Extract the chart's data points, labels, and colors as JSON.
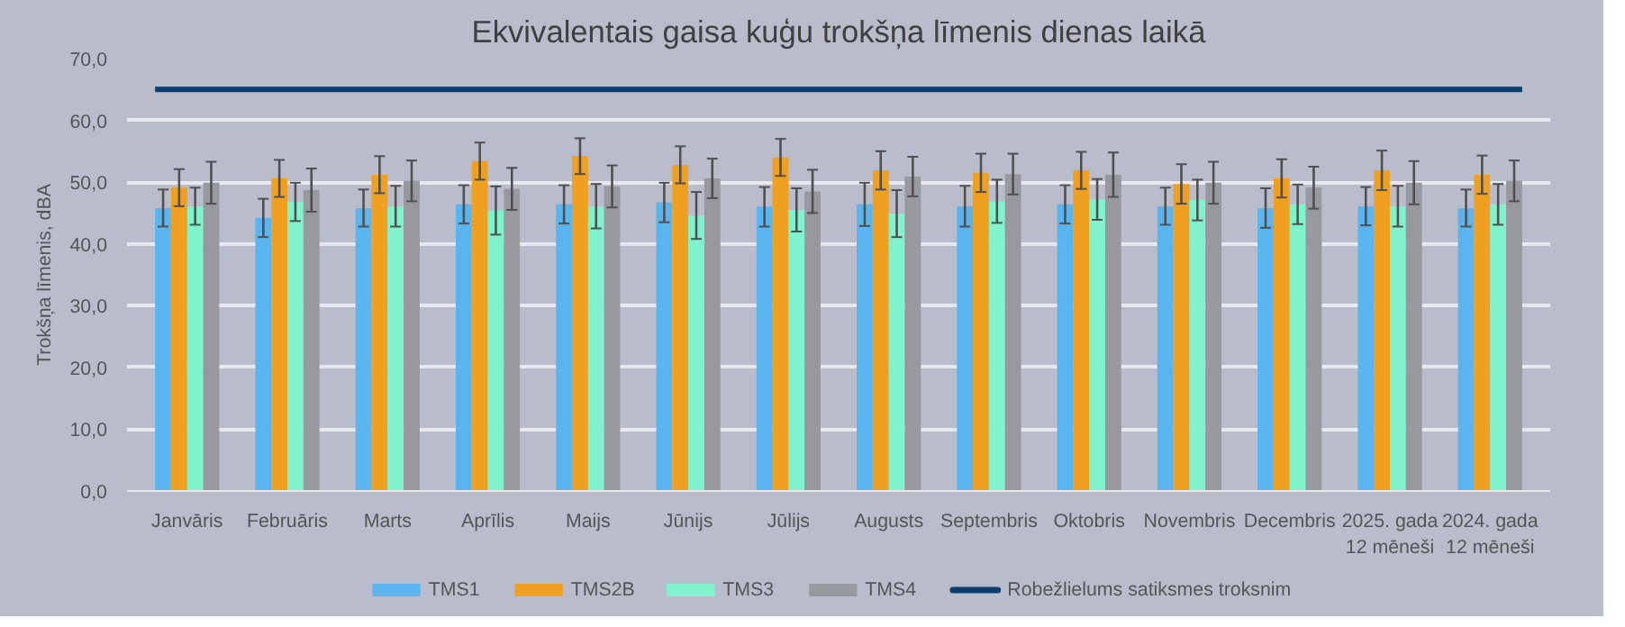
{
  "chart_data": {
    "type": "bar",
    "title": "Ekvivalentais gaisa kuģu trokšņa līmenis dienas laikā",
    "ylabel": "Trokšņa līmenis, dBA",
    "categories": [
      "Janvāris",
      "Februāris",
      "Marts",
      "Aprīlis",
      "Maijs",
      "Jūnijs",
      "Jūlijs",
      "Augusts",
      "Septembris",
      "Oktobris",
      "Novembris",
      "Decembris",
      "2025. gada\n12 mēneši",
      "2024. gada\n12 mēneši"
    ],
    "series": [
      {
        "name": "TMS1",
        "color": "#5ab4f0",
        "values": [
          45.8,
          44.2,
          45.8,
          46.4,
          46.4,
          46.7,
          46.0,
          46.4,
          46.1,
          46.4,
          46.1,
          45.8,
          46.1,
          45.8
        ],
        "errors": [
          3.0,
          3.1,
          3.0,
          3.1,
          3.1,
          3.2,
          3.2,
          3.5,
          3.3,
          3.1,
          3.0,
          3.2,
          3.1,
          3.0
        ]
      },
      {
        "name": "TMS2B",
        "color": "#f0a020",
        "values": [
          49.1,
          50.6,
          51.2,
          53.4,
          54.2,
          52.8,
          54.0,
          51.9,
          51.5,
          51.9,
          49.7,
          50.6,
          51.9,
          51.2
        ],
        "errors": [
          3.0,
          3.0,
          3.0,
          3.0,
          2.9,
          3.0,
          3.0,
          3.1,
          3.1,
          3.0,
          3.2,
          3.1,
          3.2,
          3.1
        ]
      },
      {
        "name": "TMS3",
        "color": "#80f2cc",
        "values": [
          46.1,
          46.8,
          46.1,
          45.4,
          46.1,
          44.6,
          45.5,
          44.9,
          46.9,
          47.2,
          47.1,
          46.4,
          46.1,
          46.4
        ],
        "errors": [
          3.0,
          3.1,
          3.3,
          3.9,
          3.6,
          3.8,
          3.5,
          3.8,
          3.5,
          3.3,
          3.3,
          3.2,
          3.3,
          3.3
        ]
      },
      {
        "name": "TMS4",
        "color": "#98989f",
        "values": [
          49.9,
          48.7,
          50.2,
          48.9,
          49.3,
          50.6,
          48.5,
          50.9,
          51.3,
          51.2,
          49.9,
          49.1,
          49.9,
          50.2
        ],
        "errors": [
          3.4,
          3.5,
          3.3,
          3.4,
          3.4,
          3.2,
          3.5,
          3.2,
          3.3,
          3.6,
          3.4,
          3.4,
          3.5,
          3.3
        ]
      }
    ],
    "ref_lines": [
      {
        "axis": "y",
        "value": 65,
        "label": "Robežlielums satiksmes troksnim",
        "color": "#0b3d6e"
      }
    ],
    "ylim": [
      0,
      70
    ],
    "yticks": [
      {
        "value": 0,
        "label": "0,0"
      },
      {
        "value": 10,
        "label": "10,0"
      },
      {
        "value": 20,
        "label": "20,0"
      },
      {
        "value": 30,
        "label": "30,0"
      },
      {
        "value": 40,
        "label": "40,0"
      },
      {
        "value": 50,
        "label": "50,0"
      },
      {
        "value": 60,
        "label": "60,0"
      },
      {
        "value": 70,
        "label": "70,0"
      }
    ],
    "grid": "y",
    "legend": "bottom"
  }
}
